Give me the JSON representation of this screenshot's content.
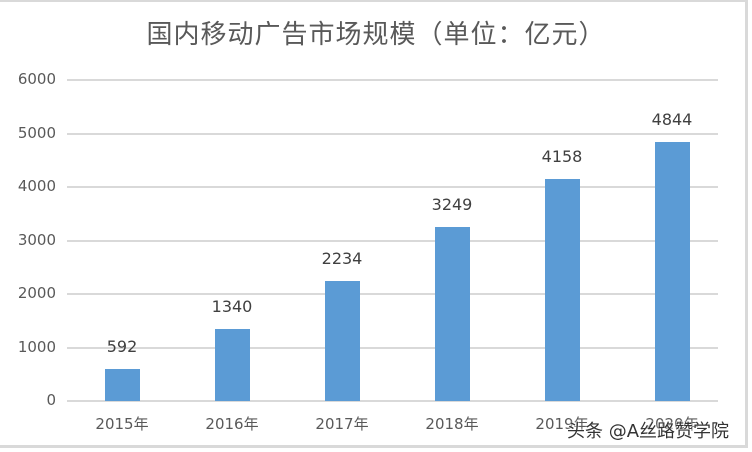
{
  "chart_data": {
    "type": "bar",
    "title": "国内移动广告市场规模（单位：亿元）",
    "categories": [
      "2015年",
      "2016年",
      "2017年",
      "2018年",
      "2019年",
      "2020年"
    ],
    "values": [
      592,
      1340,
      2234,
      3249,
      4158,
      4844
    ],
    "data_labels": [
      "592",
      "1340",
      "2234",
      "3249",
      "4158",
      "4844"
    ],
    "xlabel": "",
    "ylabel": "",
    "ylim": [
      0,
      6000
    ],
    "yticks": [
      "0",
      "1000",
      "2000",
      "3000",
      "4000",
      "5000",
      "6000"
    ],
    "grid": true,
    "legend": "none",
    "bar_color": "#5b9bd5"
  },
  "watermark": "头条 @A丝路赞学院"
}
